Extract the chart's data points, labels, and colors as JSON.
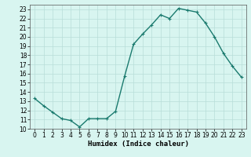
{
  "x": [
    0,
    1,
    2,
    3,
    4,
    5,
    6,
    7,
    8,
    9,
    10,
    11,
    12,
    13,
    14,
    15,
    16,
    17,
    18,
    19,
    20,
    21,
    22,
    23
  ],
  "y": [
    13.3,
    12.5,
    11.8,
    11.1,
    10.9,
    10.2,
    11.1,
    11.1,
    11.1,
    11.9,
    15.7,
    19.2,
    20.3,
    21.3,
    22.4,
    22.0,
    23.1,
    22.9,
    22.7,
    21.5,
    20.0,
    18.2,
    16.8,
    15.6
  ],
  "line_color": "#1a7a6e",
  "marker": "+",
  "marker_size": 3,
  "bg_color": "#d8f5f0",
  "grid_color": "#b8ddd8",
  "xlabel": "Humidex (Indice chaleur)",
  "xlim": [
    -0.5,
    23.5
  ],
  "ylim": [
    10,
    23.5
  ],
  "yticks": [
    10,
    11,
    12,
    13,
    14,
    15,
    16,
    17,
    18,
    19,
    20,
    21,
    22,
    23
  ],
  "xticks": [
    0,
    1,
    2,
    3,
    4,
    5,
    6,
    7,
    8,
    9,
    10,
    11,
    12,
    13,
    14,
    15,
    16,
    17,
    18,
    19,
    20,
    21,
    22,
    23
  ],
  "label_fontsize": 6.5,
  "tick_fontsize": 5.5,
  "linewidth": 1.0,
  "markeredgewidth": 0.8
}
